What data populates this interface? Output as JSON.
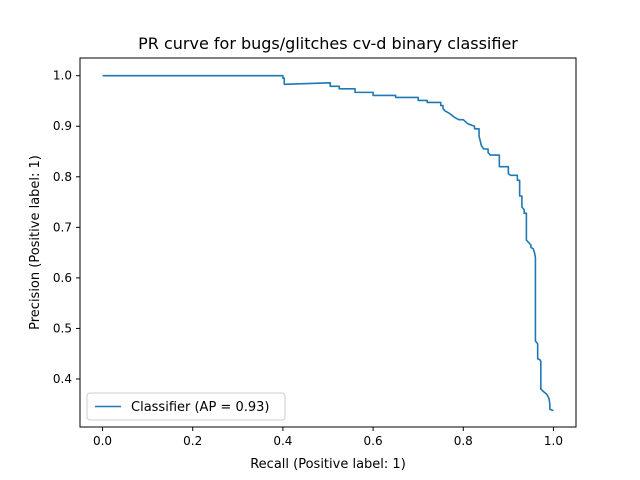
{
  "chart_data": {
    "type": "line",
    "title": "PR curve for bugs/glitches cv-d binary classifier",
    "xlabel": "Recall (Positive label: 1)",
    "ylabel": "Precision (Positive label: 1)",
    "xlim": [
      -0.05,
      1.05
    ],
    "ylim": [
      0.305,
      1.035
    ],
    "xticks": [
      0.0,
      0.2,
      0.4,
      0.6,
      0.8,
      1.0
    ],
    "yticks": [
      0.4,
      0.5,
      0.6,
      0.7,
      0.8,
      0.9,
      1.0
    ],
    "grid": false,
    "legend_position": "lower-left",
    "series": [
      {
        "name": "Classifier (AP = 0.93)",
        "color": "#1f77b4",
        "points": [
          [
            0.0,
            1.0
          ],
          [
            0.4,
            1.0
          ],
          [
            0.4,
            0.995
          ],
          [
            0.403,
            0.995
          ],
          [
            0.403,
            0.983
          ],
          [
            0.505,
            0.986
          ],
          [
            0.505,
            0.979
          ],
          [
            0.525,
            0.979
          ],
          [
            0.525,
            0.974
          ],
          [
            0.56,
            0.974
          ],
          [
            0.56,
            0.967
          ],
          [
            0.6,
            0.967
          ],
          [
            0.6,
            0.961
          ],
          [
            0.65,
            0.961
          ],
          [
            0.65,
            0.957
          ],
          [
            0.7,
            0.957
          ],
          [
            0.7,
            0.951
          ],
          [
            0.72,
            0.951
          ],
          [
            0.72,
            0.947
          ],
          [
            0.75,
            0.947
          ],
          [
            0.75,
            0.941
          ],
          [
            0.755,
            0.941
          ],
          [
            0.755,
            0.935
          ],
          [
            0.76,
            0.93
          ],
          [
            0.77,
            0.925
          ],
          [
            0.78,
            0.918
          ],
          [
            0.79,
            0.913
          ],
          [
            0.8,
            0.913
          ],
          [
            0.81,
            0.905
          ],
          [
            0.825,
            0.9
          ],
          [
            0.825,
            0.895
          ],
          [
            0.835,
            0.895
          ],
          [
            0.835,
            0.88
          ],
          [
            0.838,
            0.87
          ],
          [
            0.84,
            0.862
          ],
          [
            0.845,
            0.855
          ],
          [
            0.855,
            0.855
          ],
          [
            0.855,
            0.848
          ],
          [
            0.86,
            0.843
          ],
          [
            0.88,
            0.843
          ],
          [
            0.88,
            0.82
          ],
          [
            0.9,
            0.82
          ],
          [
            0.9,
            0.806
          ],
          [
            0.905,
            0.803
          ],
          [
            0.92,
            0.803
          ],
          [
            0.92,
            0.793
          ],
          [
            0.925,
            0.793
          ],
          [
            0.925,
            0.762
          ],
          [
            0.93,
            0.762
          ],
          [
            0.93,
            0.74
          ],
          [
            0.935,
            0.735
          ],
          [
            0.935,
            0.728
          ],
          [
            0.94,
            0.728
          ],
          [
            0.94,
            0.675
          ],
          [
            0.945,
            0.67
          ],
          [
            0.95,
            0.665
          ],
          [
            0.95,
            0.66
          ],
          [
            0.955,
            0.658
          ],
          [
            0.958,
            0.65
          ],
          [
            0.96,
            0.64
          ],
          [
            0.96,
            0.475
          ],
          [
            0.965,
            0.47
          ],
          [
            0.965,
            0.44
          ],
          [
            0.97,
            0.438
          ],
          [
            0.972,
            0.435
          ],
          [
            0.972,
            0.38
          ],
          [
            0.978,
            0.375
          ],
          [
            0.985,
            0.37
          ],
          [
            0.988,
            0.365
          ],
          [
            0.99,
            0.362
          ],
          [
            0.992,
            0.35
          ],
          [
            0.992,
            0.34
          ],
          [
            0.998,
            0.338
          ],
          [
            1.0,
            0.338
          ]
        ]
      }
    ]
  }
}
